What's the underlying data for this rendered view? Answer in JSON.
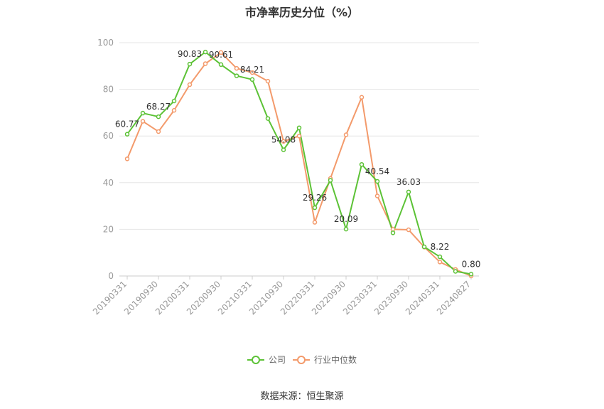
{
  "chart_data": {
    "type": "line",
    "title": "市净率历史分位（%）",
    "source": "数据来源：恒生聚源",
    "ylim": [
      0,
      100
    ],
    "yticks": [
      0,
      20,
      40,
      60,
      80,
      100
    ],
    "x": [
      "20190331",
      "20190630",
      "20190930",
      "20191231",
      "20200331",
      "20200630",
      "20200930",
      "20201231",
      "20210331",
      "20210630",
      "20210930",
      "20211231",
      "20220331",
      "20220630",
      "20220930",
      "20221231",
      "20230331",
      "20230630",
      "20230930",
      "20231231",
      "20240331",
      "20240630",
      "20240827"
    ],
    "xticks": [
      "20190331",
      "20190930",
      "20200331",
      "20200930",
      "20210331",
      "20210930",
      "20220331",
      "20220930",
      "20230331",
      "20230930",
      "20240331",
      "20240827"
    ],
    "grid": true,
    "legend_position": "bottom",
    "series": [
      {
        "name": "公司",
        "color": "#5cc236",
        "values": [
          60.77,
          69.8,
          68.27,
          75.0,
          90.83,
          96.0,
          90.61,
          85.8,
          84.21,
          67.5,
          54.08,
          63.5,
          29.26,
          41.0,
          20.09,
          47.8,
          40.54,
          18.5,
          36.03,
          12.5,
          8.22,
          2.0,
          0.8
        ],
        "labels": {
          "0": "60.77",
          "2": "68.27",
          "4": "90.83",
          "6": "90.61",
          "8": "84.21",
          "10": "54.08",
          "12": "29.26",
          "14": "20.09",
          "16": "40.54",
          "18": "36.03",
          "20": "8.22",
          "22": "0.80"
        }
      },
      {
        "name": "行业中位数",
        "color": "#f39a6b",
        "values": [
          50.2,
          66.3,
          61.9,
          71.0,
          82.0,
          91.0,
          95.8,
          89.0,
          87.2,
          83.5,
          57.7,
          60.0,
          23.0,
          41.8,
          60.5,
          76.6,
          34.3,
          20.0,
          19.8,
          12.4,
          6.0,
          2.8,
          0.0
        ]
      }
    ]
  }
}
